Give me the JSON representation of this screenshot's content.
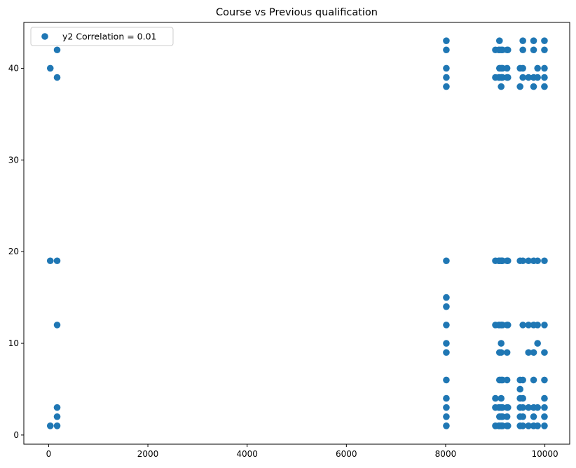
{
  "chart_data": {
    "type": "scatter",
    "title": "Course vs Previous qualification",
    "xlabel": "",
    "ylabel": "",
    "xlim": [
      -500,
      10500
    ],
    "ylim": [
      -1,
      45
    ],
    "xticks": [
      0,
      2000,
      4000,
      6000,
      8000,
      10000
    ],
    "yticks": [
      0,
      10,
      20,
      30,
      40
    ],
    "grid": false,
    "legend_position": "top-left",
    "series": [
      {
        "name": "y2 Correlation = 0.01",
        "color": "#1f77b4",
        "points": [
          [
            33,
            1
          ],
          [
            33,
            19
          ],
          [
            33,
            40
          ],
          [
            171,
            1
          ],
          [
            171,
            2
          ],
          [
            171,
            3
          ],
          [
            171,
            12
          ],
          [
            171,
            19
          ],
          [
            171,
            39
          ],
          [
            171,
            42
          ],
          [
            8014,
            1
          ],
          [
            8014,
            2
          ],
          [
            8014,
            3
          ],
          [
            8014,
            4
          ],
          [
            8014,
            6
          ],
          [
            8014,
            9
          ],
          [
            8014,
            10
          ],
          [
            8014,
            12
          ],
          [
            8014,
            14
          ],
          [
            8014,
            15
          ],
          [
            8014,
            19
          ],
          [
            8014,
            38
          ],
          [
            8014,
            39
          ],
          [
            8014,
            40
          ],
          [
            8014,
            42
          ],
          [
            8014,
            43
          ],
          [
            9003,
            1
          ],
          [
            9003,
            3
          ],
          [
            9003,
            4
          ],
          [
            9003,
            12
          ],
          [
            9003,
            19
          ],
          [
            9003,
            39
          ],
          [
            9003,
            42
          ],
          [
            9070,
            1
          ],
          [
            9070,
            3
          ],
          [
            9070,
            12
          ],
          [
            9070,
            19
          ],
          [
            9070,
            39
          ],
          [
            9070,
            42
          ],
          [
            9085,
            1
          ],
          [
            9085,
            2
          ],
          [
            9085,
            3
          ],
          [
            9085,
            6
          ],
          [
            9085,
            9
          ],
          [
            9085,
            12
          ],
          [
            9085,
            19
          ],
          [
            9085,
            39
          ],
          [
            9085,
            40
          ],
          [
            9085,
            42
          ],
          [
            9085,
            43
          ],
          [
            9119,
            1
          ],
          [
            9119,
            2
          ],
          [
            9119,
            3
          ],
          [
            9119,
            4
          ],
          [
            9119,
            6
          ],
          [
            9119,
            9
          ],
          [
            9119,
            10
          ],
          [
            9119,
            12
          ],
          [
            9119,
            19
          ],
          [
            9119,
            38
          ],
          [
            9119,
            39
          ],
          [
            9119,
            40
          ],
          [
            9119,
            42
          ],
          [
            9130,
            1
          ],
          [
            9130,
            3
          ],
          [
            9130,
            12
          ],
          [
            9130,
            19
          ],
          [
            9130,
            39
          ],
          [
            9147,
            1
          ],
          [
            9147,
            2
          ],
          [
            9147,
            3
          ],
          [
            9147,
            6
          ],
          [
            9147,
            12
          ],
          [
            9147,
            19
          ],
          [
            9147,
            39
          ],
          [
            9147,
            40
          ],
          [
            9147,
            42
          ],
          [
            9238,
            1
          ],
          [
            9238,
            2
          ],
          [
            9238,
            3
          ],
          [
            9238,
            6
          ],
          [
            9238,
            9
          ],
          [
            9238,
            12
          ],
          [
            9238,
            19
          ],
          [
            9238,
            39
          ],
          [
            9238,
            40
          ],
          [
            9238,
            42
          ],
          [
            9254,
            1
          ],
          [
            9254,
            3
          ],
          [
            9254,
            12
          ],
          [
            9254,
            19
          ],
          [
            9254,
            39
          ],
          [
            9254,
            42
          ],
          [
            9500,
            1
          ],
          [
            9500,
            2
          ],
          [
            9500,
            3
          ],
          [
            9500,
            4
          ],
          [
            9500,
            5
          ],
          [
            9500,
            6
          ],
          [
            9500,
            19
          ],
          [
            9500,
            38
          ],
          [
            9500,
            40
          ],
          [
            9556,
            1
          ],
          [
            9556,
            2
          ],
          [
            9556,
            3
          ],
          [
            9556,
            4
          ],
          [
            9556,
            6
          ],
          [
            9556,
            12
          ],
          [
            9556,
            19
          ],
          [
            9556,
            39
          ],
          [
            9556,
            40
          ],
          [
            9556,
            42
          ],
          [
            9556,
            43
          ],
          [
            9670,
            1
          ],
          [
            9670,
            3
          ],
          [
            9670,
            9
          ],
          [
            9670,
            12
          ],
          [
            9670,
            19
          ],
          [
            9670,
            39
          ],
          [
            9773,
            1
          ],
          [
            9773,
            2
          ],
          [
            9773,
            3
          ],
          [
            9773,
            6
          ],
          [
            9773,
            9
          ],
          [
            9773,
            12
          ],
          [
            9773,
            19
          ],
          [
            9773,
            38
          ],
          [
            9773,
            39
          ],
          [
            9773,
            42
          ],
          [
            9773,
            43
          ],
          [
            9853,
            1
          ],
          [
            9853,
            3
          ],
          [
            9853,
            10
          ],
          [
            9853,
            12
          ],
          [
            9853,
            19
          ],
          [
            9853,
            39
          ],
          [
            9853,
            40
          ],
          [
            9991,
            1
          ],
          [
            9991,
            2
          ],
          [
            9991,
            3
          ],
          [
            9991,
            4
          ],
          [
            9991,
            6
          ],
          [
            9991,
            9
          ],
          [
            9991,
            12
          ],
          [
            9991,
            19
          ],
          [
            9991,
            38
          ],
          [
            9991,
            39
          ],
          [
            9991,
            40
          ],
          [
            9991,
            42
          ],
          [
            9991,
            43
          ]
        ]
      }
    ]
  }
}
